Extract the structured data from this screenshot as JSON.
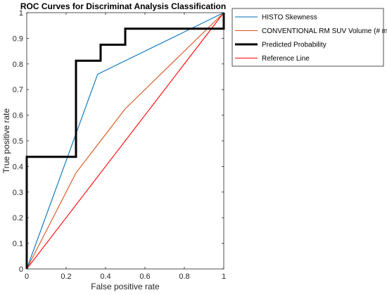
{
  "chart_data": {
    "type": "line",
    "title": "ROC Curves for Discriminat Analysis Classification",
    "xlabel": "False positive rate",
    "ylabel": "True positive rate",
    "xlim": [
      0,
      1
    ],
    "ylim": [
      0,
      1
    ],
    "xticks": [
      0,
      0.2,
      0.4,
      0.6,
      0.8,
      1
    ],
    "xtick_labels": [
      "0",
      "0.2",
      "0.4",
      "0.6",
      "0.8",
      "1"
    ],
    "yticks": [
      0,
      0.1,
      0.2,
      0.3,
      0.4,
      0.5,
      0.6,
      0.7,
      0.8,
      0.9,
      1
    ],
    "ytick_labels": [
      "0",
      "0.1",
      "0.2",
      "0.3",
      "0.4",
      "0.5",
      "0.6",
      "0.7",
      "0.8",
      "0.9",
      "1"
    ],
    "grid": false,
    "legend_position": "outside-top-right",
    "series": [
      {
        "name": "HISTO  Skewness",
        "color": "#0072bd",
        "line_width": "thin",
        "x": [
          0,
          0.36,
          1
        ],
        "y": [
          0,
          0.76,
          1
        ]
      },
      {
        "name": "CONVENTIONAL  RM SUV Volume (# mL)",
        "color": "#d95319",
        "line_width": "thin",
        "x": [
          0,
          0.25,
          0.5,
          1
        ],
        "y": [
          0,
          0.375,
          0.625,
          1
        ]
      },
      {
        "name": "Predicted Probability",
        "color": "#000000",
        "line_width": "thick",
        "x": [
          0,
          0,
          0.25,
          0.25,
          0.375,
          0.375,
          0.5,
          0.5,
          1,
          1
        ],
        "y": [
          0,
          0.4375,
          0.4375,
          0.8125,
          0.8125,
          0.875,
          0.875,
          0.9375,
          0.9375,
          1
        ]
      },
      {
        "name": "Reference Line",
        "color": "#ff0000",
        "line_width": "thin",
        "x": [
          0,
          1
        ],
        "y": [
          0,
          1
        ]
      }
    ]
  }
}
